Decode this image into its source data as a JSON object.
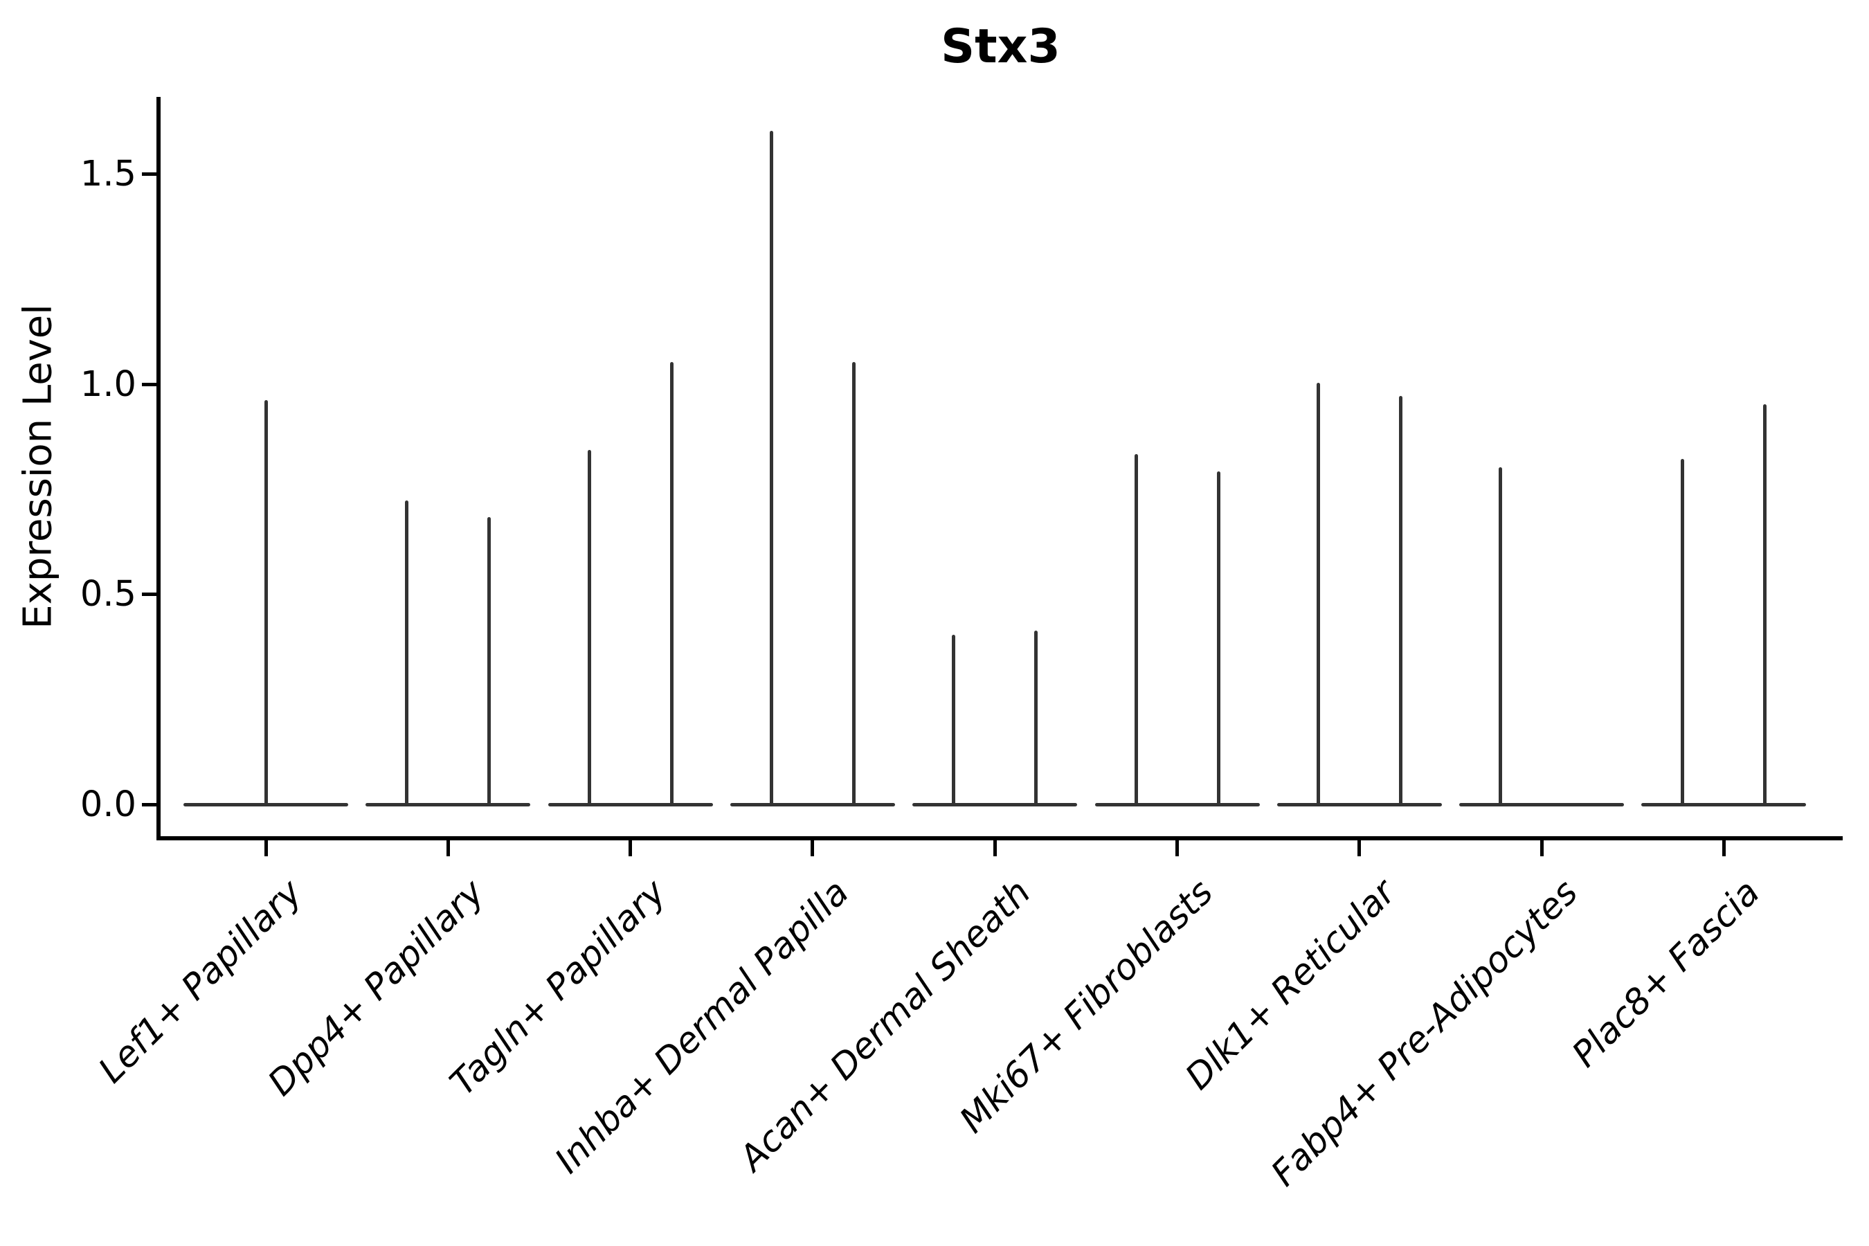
{
  "chart_data": {
    "type": "violin",
    "title": "Stx3",
    "ylabel": "Expression Level",
    "xlabel": "",
    "ylim": [
      -0.08,
      1.68
    ],
    "yticks": [
      0.0,
      0.5,
      1.0,
      1.5
    ],
    "ytick_labels": [
      "0.0",
      "0.5",
      "1.0",
      "1.5"
    ],
    "grid": false,
    "legend": null,
    "violin_color": "#333333",
    "axis_color": "#000000",
    "categories": [
      "Lef1+ Papillary",
      "Dpp4+ Papillary",
      "Tagln+ Papillary",
      "Inhba+ Dermal Papilla",
      "Acan+ Dermal Sheath",
      "Mki67+ Fibroblasts",
      "Dlk1+ Reticular",
      "Fabp4+ Pre-Adipocytes",
      "Plac8+ Fascia"
    ],
    "violins": [
      {
        "category": "Lef1+ Papillary",
        "spikes": [
          {
            "position": "center",
            "max_value": 0.96
          }
        ]
      },
      {
        "category": "Dpp4+ Papillary",
        "spikes": [
          {
            "position": "left",
            "max_value": 0.72
          },
          {
            "position": "right",
            "max_value": 0.68
          }
        ]
      },
      {
        "category": "Tagln+ Papillary",
        "spikes": [
          {
            "position": "left",
            "max_value": 0.84
          },
          {
            "position": "right",
            "max_value": 1.05
          }
        ]
      },
      {
        "category": "Inhba+ Dermal Papilla",
        "spikes": [
          {
            "position": "left",
            "max_value": 1.6
          },
          {
            "position": "right",
            "max_value": 1.05
          }
        ]
      },
      {
        "category": "Acan+ Dermal Sheath",
        "spikes": [
          {
            "position": "left",
            "max_value": 0.4
          },
          {
            "position": "right",
            "max_value": 0.41
          }
        ]
      },
      {
        "category": "Mki67+ Fibroblasts",
        "spikes": [
          {
            "position": "left",
            "max_value": 0.83
          },
          {
            "position": "right",
            "max_value": 0.79
          }
        ]
      },
      {
        "category": "Dlk1+ Reticular",
        "spikes": [
          {
            "position": "left",
            "max_value": 1.0
          },
          {
            "position": "right",
            "max_value": 0.97
          }
        ]
      },
      {
        "category": "Fabp4+ Pre-Adipocytes",
        "spikes": [
          {
            "position": "left",
            "max_value": 0.8
          }
        ]
      },
      {
        "category": "Plac8+ Fascia",
        "spikes": [
          {
            "position": "left",
            "max_value": 0.82
          },
          {
            "position": "right",
            "max_value": 0.95
          }
        ]
      }
    ]
  }
}
